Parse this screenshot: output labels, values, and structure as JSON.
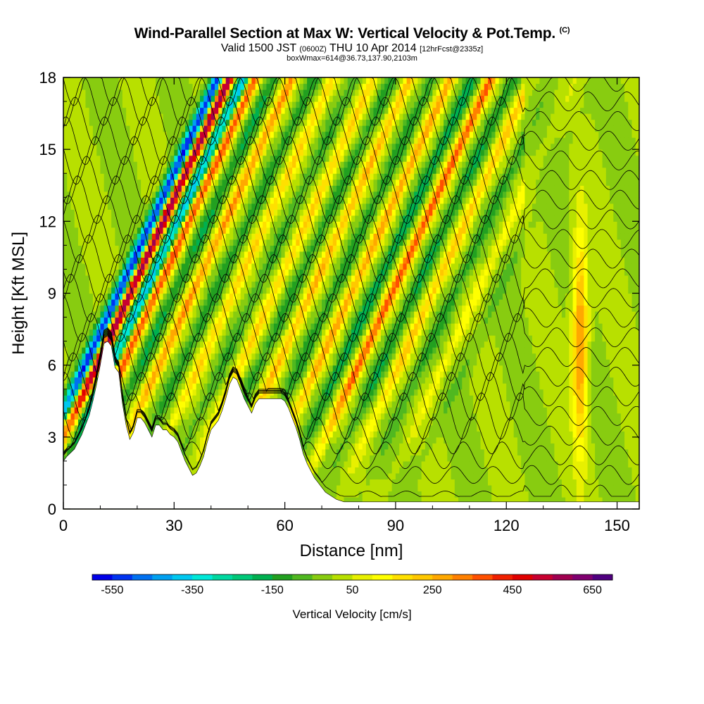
{
  "header": {
    "title": "Wind-Parallel Section at Max W: Vertical Velocity & Pot.Temp.",
    "copyright": "(C)",
    "valid_prefix": "Valid 1500 JST",
    "valid_utc": "(0600Z)",
    "valid_date": "THU 10 Apr 2014",
    "forecast": "[12hrFcst@2335z]",
    "box_info": "boxWmax=614@36.73,137.90,2103m"
  },
  "chart_data": {
    "type": "heatmap",
    "title": "Wind-Parallel Section at Max W: Vertical Velocity & Pot.Temp.",
    "xlabel": "Distance [nm]",
    "ylabel": "Height [Kft MSL]",
    "xlim": [
      0,
      156
    ],
    "ylim": [
      0,
      18
    ],
    "xticks": [
      0,
      30,
      60,
      90,
      120,
      150
    ],
    "yticks": [
      0,
      3,
      6,
      9,
      12,
      15,
      18
    ],
    "xtick_labels": [
      "0",
      "30",
      "60",
      "90",
      "120",
      "150"
    ],
    "ytick_labels": [
      "0",
      "3",
      "6",
      "9",
      "12",
      "15",
      "18"
    ],
    "colorbar": {
      "title": "Vertical Velocity [cm/s]",
      "labels": [
        "-550",
        "-350",
        "-150",
        "50",
        "250",
        "450",
        "650"
      ],
      "levels": [
        -550,
        -500,
        -450,
        -400,
        -350,
        -300,
        -250,
        -200,
        -150,
        -100,
        -50,
        0,
        50,
        100,
        150,
        200,
        250,
        300,
        350,
        400,
        450,
        500,
        550,
        600,
        650
      ],
      "colors": [
        "#0000e8",
        "#0033f0",
        "#0070f0",
        "#00a0f0",
        "#00c8f0",
        "#00e8d8",
        "#00d8a0",
        "#00c878",
        "#00b050",
        "#22a020",
        "#50b820",
        "#88cc10",
        "#b8e000",
        "#e8f000",
        "#ffff00",
        "#ffe000",
        "#ffc800",
        "#ffa800",
        "#ff8000",
        "#ff5000",
        "#f02000",
        "#e00000",
        "#c80030",
        "#a00050",
        "#800070",
        "#500080"
      ]
    },
    "wave_updrafts": [
      {
        "x": 18,
        "w": 620
      },
      {
        "x": 25,
        "w": 400
      },
      {
        "x": 35,
        "w": 300
      },
      {
        "x": 46,
        "w": 200
      },
      {
        "x": 57,
        "w": 200
      },
      {
        "x": 67,
        "w": 250
      },
      {
        "x": 78,
        "w": 280
      },
      {
        "x": 89,
        "w": 380
      },
      {
        "x": 100,
        "w": 220
      },
      {
        "x": 112,
        "w": 120
      }
    ],
    "wave_downdrafts": [
      {
        "x": 15,
        "w": -550
      },
      {
        "x": 22,
        "w": -380
      },
      {
        "x": 30,
        "w": -150
      },
      {
        "x": 41,
        "w": -130
      },
      {
        "x": 52,
        "w": -100
      },
      {
        "x": 62,
        "w": -120
      },
      {
        "x": 73,
        "w": -130
      },
      {
        "x": 84,
        "w": -180
      },
      {
        "x": 95,
        "w": -150
      },
      {
        "x": 106,
        "w": -120
      },
      {
        "x": 118,
        "w": -60
      }
    ],
    "isolated_updraft": {
      "x": 140,
      "zmin": 2.5,
      "zmax": 11.5,
      "w": 320
    },
    "terrain": {
      "x": [
        0,
        1,
        3,
        5,
        7,
        8,
        9,
        10,
        11,
        12,
        13,
        14,
        15,
        16,
        17,
        18,
        19,
        20,
        21,
        22,
        23,
        24,
        25,
        26,
        27,
        28,
        29,
        30,
        31,
        32,
        33,
        34,
        35,
        36,
        37,
        38,
        39,
        40,
        41,
        42,
        43,
        44,
        45,
        46,
        47,
        48,
        49,
        50,
        51,
        52,
        53,
        54,
        55,
        56,
        57,
        58,
        59,
        60,
        61,
        62,
        63,
        64,
        65,
        66,
        67,
        68,
        69,
        70,
        71,
        72,
        73,
        74,
        76,
        78,
        80,
        82,
        156
      ],
      "z": [
        2.0,
        2.2,
        2.5,
        3.1,
        3.9,
        4.5,
        5.2,
        6.0,
        6.9,
        7.0,
        6.8,
        5.9,
        5.7,
        4.4,
        3.5,
        2.9,
        3.2,
        3.8,
        3.8,
        3.6,
        3.3,
        3.0,
        3.5,
        3.5,
        3.3,
        3.3,
        3.1,
        3.0,
        2.8,
        2.4,
        2.0,
        1.7,
        1.4,
        1.5,
        1.8,
        2.2,
        2.8,
        3.3,
        3.5,
        3.7,
        4.1,
        4.6,
        5.2,
        5.5,
        5.4,
        5.0,
        4.6,
        4.3,
        4.0,
        4.4,
        4.6,
        4.6,
        4.6,
        4.6,
        4.6,
        4.6,
        4.6,
        4.5,
        4.2,
        3.8,
        3.4,
        2.9,
        2.3,
        1.9,
        1.6,
        1.3,
        1.1,
        0.9,
        0.7,
        0.6,
        0.5,
        0.4,
        0.3,
        0.3,
        0.3,
        0.3,
        0.3
      ]
    }
  }
}
